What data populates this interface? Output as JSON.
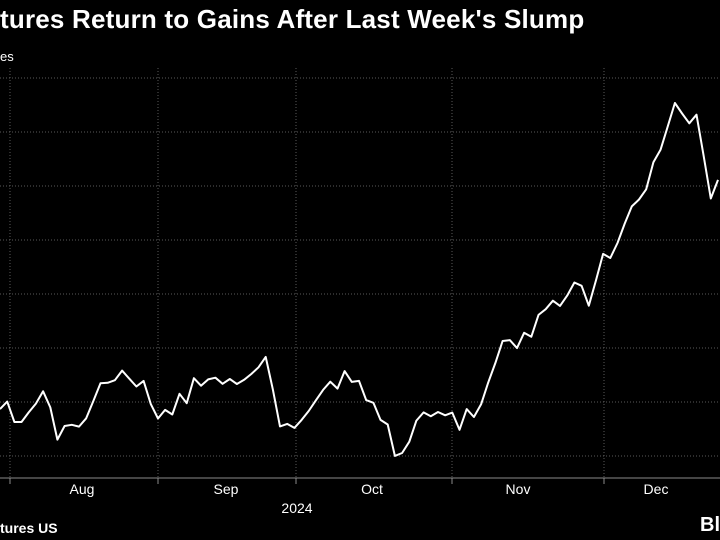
{
  "title": "tures Return to Gains After Last Week's Slump",
  "unit_label": "es",
  "source": "tures US",
  "brand": "Bl",
  "colors": {
    "background": "#000000",
    "line": "#ffffff",
    "grid": "#5a5a5a"
  },
  "chart_data": {
    "type": "line",
    "title": "tures Return to Gains After Last Week's Slump",
    "ylabel": "es",
    "x_ticks": [
      "Aug",
      "Sep",
      "Oct",
      "Nov",
      "Dec"
    ],
    "x_year_label": "2024",
    "grid": true,
    "values": [
      398.4,
      402.3,
      391.7,
      391.7,
      396.7,
      401.3,
      407.7,
      399.3,
      382.5,
      389.6,
      390.2,
      389.3,
      393.6,
      402.6,
      411.9,
      412.1,
      413.5,
      418.5,
      414.3,
      410.2,
      413.1,
      401.0,
      393.5,
      398.0,
      395.6,
      406.4,
      401.5,
      414.5,
      410.6,
      413.9,
      414.8,
      411.6,
      414.1,
      411.5,
      413.7,
      416.7,
      420.2,
      425.6,
      408.8,
      389.4,
      390.7,
      388.6,
      392.8,
      397.4,
      403.0,
      408.4,
      412.7,
      409.1,
      418.2,
      412.6,
      413.1,
      403.1,
      401.7,
      392.8,
      390.4,
      374.0,
      375.5,
      381.4,
      392.4,
      396.7,
      394.7,
      396.9,
      395.2,
      396.6,
      387.6,
      398.4,
      394.3,
      400.9,
      412.2,
      422.5,
      433.9,
      434.4,
      430.2,
      438.2,
      436.1,
      447.5,
      450.5,
      454.9,
      452.2,
      457.6,
      464.4,
      462.7,
      452.3,
      465.4,
      479.3,
      477.2,
      485.0,
      495.1,
      504.1,
      507.7,
      513.0,
      527.1,
      533.7,
      545.7,
      558.0,
      552.5,
      547.4,
      551.9,
      530.6,
      508.2,
      517.9
    ]
  }
}
